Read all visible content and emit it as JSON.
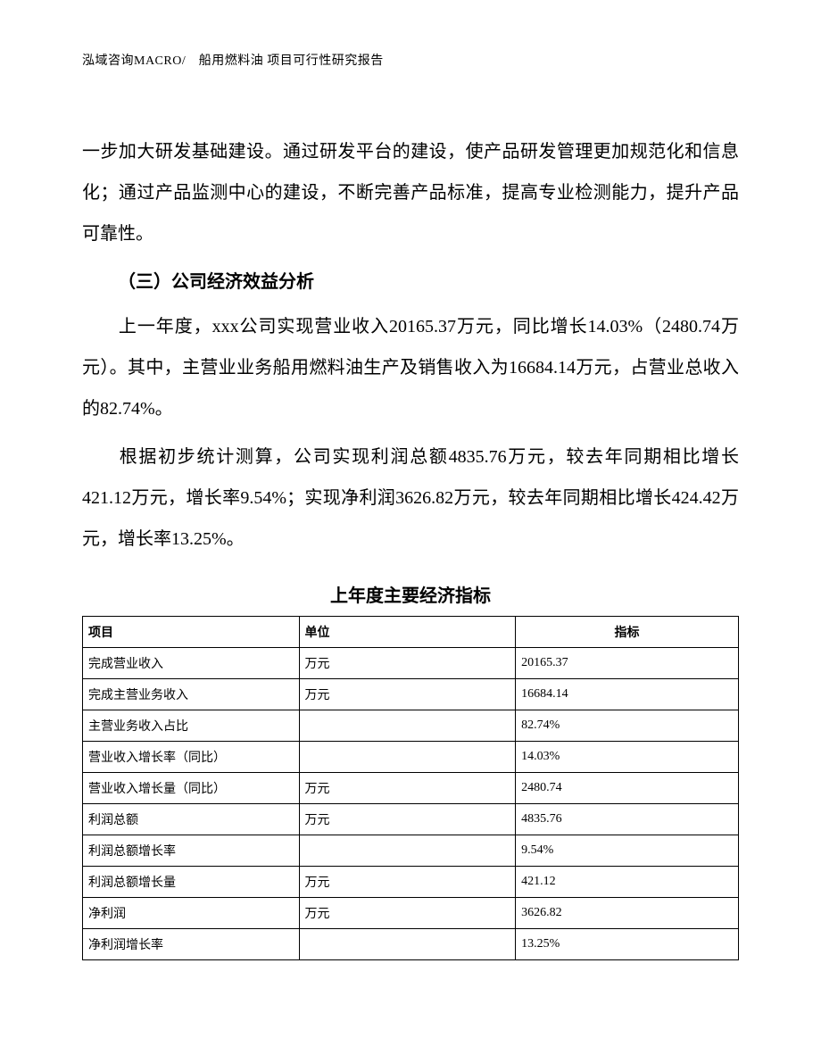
{
  "header": "泓域咨询MACRO/　船用燃料油 项目可行性研究报告",
  "paragraph1": "一步加大研发基础建设。通过研发平台的建设，使产品研发管理更加规范化和信息化；通过产品监测中心的建设，不断完善产品标准，提高专业检测能力，提升产品可靠性。",
  "section_heading": "（三）公司经济效益分析",
  "paragraph2": "上一年度，xxx公司实现营业收入20165.37万元，同比增长14.03%（2480.74万元）。其中，主营业业务船用燃料油生产及销售收入为16684.14万元，占营业总收入的82.74%。",
  "paragraph3": "根据初步统计测算，公司实现利润总额4835.76万元，较去年同期相比增长421.12万元，增长率9.54%；实现净利润3626.82万元，较去年同期相比增长424.42万元，增长率13.25%。",
  "table_title": "上年度主要经济指标",
  "table": {
    "columns": [
      "项目",
      "单位",
      "指标"
    ],
    "rows": [
      [
        "完成营业收入",
        "万元",
        "20165.37"
      ],
      [
        "完成主营业务收入",
        "万元",
        "16684.14"
      ],
      [
        "主营业务收入占比",
        "",
        "82.74%"
      ],
      [
        "营业收入增长率（同比）",
        "",
        "14.03%"
      ],
      [
        "营业收入增长量（同比）",
        "万元",
        "2480.74"
      ],
      [
        "利润总额",
        "万元",
        "4835.76"
      ],
      [
        "利润总额增长率",
        "",
        "9.54%"
      ],
      [
        "利润总额增长量",
        "万元",
        "421.12"
      ],
      [
        "净利润",
        "万元",
        "3626.82"
      ],
      [
        "净利润增长率",
        "",
        "13.25%"
      ]
    ]
  }
}
